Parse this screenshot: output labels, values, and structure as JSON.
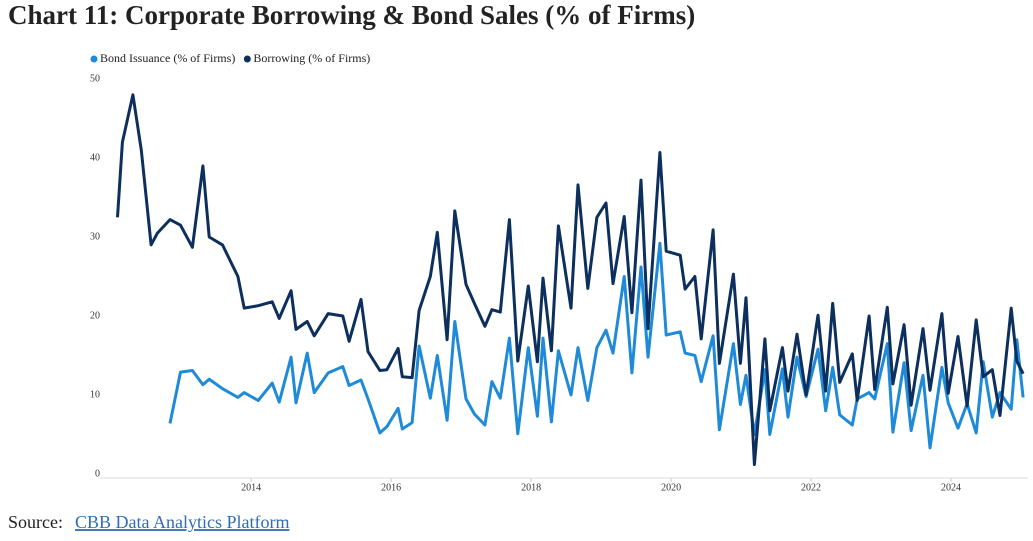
{
  "chart_data": {
    "type": "line",
    "title": "Chart 11: Corporate Borrowing & Bond Sales (% of Firms)",
    "source": {
      "prefix": "Source:",
      "link": "CBB Data Analytics Platform"
    },
    "x": [
      2012.09,
      2012.16,
      2012.31,
      2012.43,
      2012.57,
      2012.66,
      2012.84,
      2012.99,
      2013.16,
      2013.31,
      2013.4,
      2013.59,
      2013.81,
      2013.9,
      2014.1,
      2014.3,
      2014.4,
      2014.57,
      2014.64,
      2014.8,
      2014.9,
      2015.1,
      2015.31,
      2015.4,
      2015.57,
      2015.67,
      2015.84,
      2015.94,
      2016.1,
      2016.16,
      2016.3,
      2016.4,
      2016.56,
      2016.66,
      2016.8,
      2016.91,
      2017.07,
      2017.19,
      2017.34,
      2017.44,
      2017.56,
      2017.69,
      2017.81,
      2017.96,
      2018.09,
      2018.17,
      2018.29,
      2018.39,
      2018.57,
      2018.67,
      2018.81,
      2018.94,
      2019.07,
      2019.17,
      2019.33,
      2019.44,
      2019.57,
      2019.67,
      2019.84,
      2019.93,
      2020.13,
      2020.2,
      2020.34,
      2020.43,
      2020.6,
      2020.69,
      2020.89,
      2020.99,
      2021.07,
      2021.19,
      2021.34,
      2021.41,
      2021.59,
      2021.67,
      2021.8,
      2021.93,
      2022.1,
      2022.21,
      2022.31,
      2022.41,
      2022.59,
      2022.66,
      2022.83,
      2022.91,
      2023.09,
      2023.17,
      2023.33,
      2023.43,
      2023.6,
      2023.7,
      2023.87,
      2023.96,
      2024.1,
      2024.23,
      2024.36,
      2024.46,
      2024.59,
      2024.7,
      2024.86,
      2024.94,
      2025.03
    ],
    "series": [
      {
        "name": "Bond Issuance (% of Firms)",
        "color": "#1f8ad8",
        "values": [
          null,
          null,
          null,
          null,
          null,
          null,
          6.4,
          12.9,
          13.1,
          11.3,
          12,
          10.8,
          9.7,
          10.3,
          9.3,
          11.5,
          9.1,
          14.8,
          9,
          15.3,
          10.3,
          12.8,
          13.6,
          11.2,
          11.9,
          9.5,
          5.2,
          6,
          8.3,
          5.7,
          6.5,
          16.2,
          9.6,
          15,
          6.8,
          19.3,
          9.5,
          7.6,
          6.2,
          11.7,
          9.6,
          17.2,
          5.1,
          16,
          7.3,
          17.2,
          6.6,
          15.6,
          10,
          16,
          9.3,
          16,
          18.2,
          15.3,
          25,
          12.8,
          26.2,
          14.8,
          29.2,
          17.6,
          18,
          15.3,
          15,
          11.7,
          17.5,
          5.6,
          16.5,
          8.8,
          12.5,
          5,
          13.2,
          5,
          13.3,
          7.2,
          14.8,
          9.8,
          15.8,
          8,
          13.5,
          7.5,
          6.2,
          9.5,
          10.3,
          9.5,
          16.5,
          5.3,
          14.1,
          5.5,
          12.5,
          3.3,
          13.5,
          9,
          5.8,
          8.9,
          5.2,
          14.2,
          7.2,
          10.3,
          8.2,
          17,
          9.7
        ]
      },
      {
        "name": "Borrowing (% of Firms)",
        "color": "#0d2f5e",
        "values": [
          32.5,
          42,
          48,
          41,
          29,
          30.5,
          32.2,
          31.5,
          28.7,
          39,
          30,
          29,
          25,
          21,
          21.3,
          21.8,
          19.7,
          23.2,
          18.3,
          19.3,
          17.5,
          20.3,
          20,
          16.8,
          22.1,
          15.5,
          13.1,
          13.2,
          15.9,
          12.3,
          12.2,
          20.7,
          25,
          30.6,
          17,
          33.3,
          24,
          21.6,
          18.7,
          20.8,
          20.5,
          32.2,
          14.3,
          23.8,
          14.2,
          24.8,
          15.6,
          31.4,
          21,
          36.6,
          23.5,
          32.5,
          34.3,
          24.1,
          32.6,
          20.4,
          37.2,
          18.4,
          40.7,
          28.2,
          27.7,
          23.4,
          25,
          17.1,
          30.9,
          14,
          25.3,
          14,
          22.3,
          1.2,
          17.1,
          8,
          16,
          10.5,
          17.7,
          10,
          20.1,
          10.5,
          21.6,
          11.6,
          15.2,
          9.3,
          20,
          10.7,
          21.1,
          11.4,
          18.9,
          8.7,
          18.4,
          10.6,
          20.3,
          10.2,
          17.4,
          8.6,
          19.5,
          12.3,
          13.2,
          7.4,
          21,
          14.3,
          12.7
        ]
      }
    ],
    "xlim": [
      2011.84,
      2025.1
    ],
    "xticks": [
      2014,
      2016,
      2018,
      2020,
      2022,
      2024
    ],
    "ylim": [
      0,
      50
    ],
    "yticks": [
      0,
      10,
      20,
      30,
      40,
      50
    ],
    "grid": false,
    "legend": "top-left"
  }
}
